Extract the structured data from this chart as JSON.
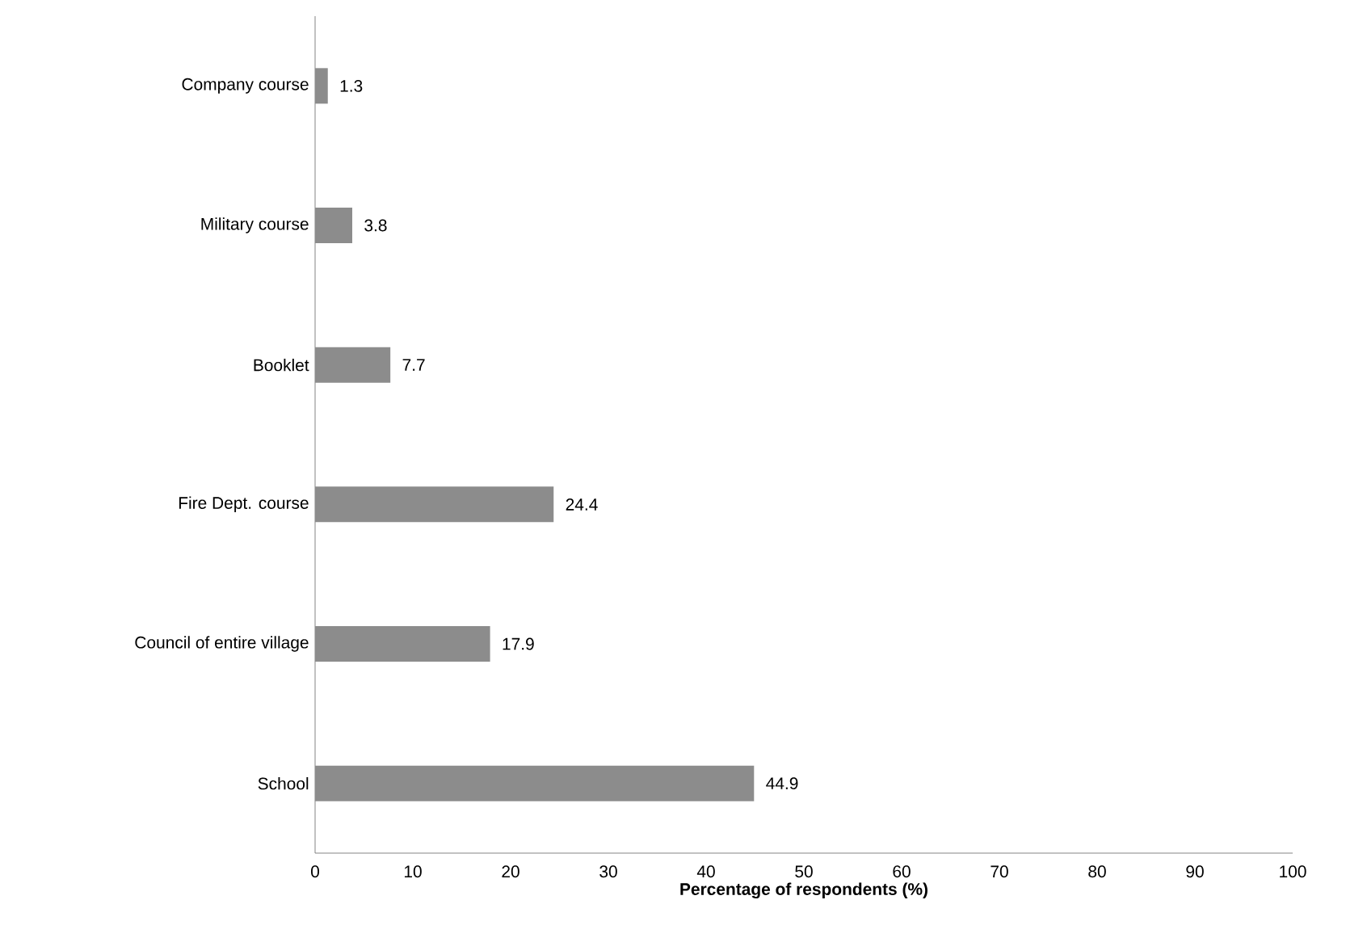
{
  "chart_data": {
    "type": "bar",
    "orientation": "horizontal",
    "xlabel": "Percentage of respondents (%)",
    "categories": [
      "Company course",
      "Military course",
      "Booklet",
      "Fire Dept. course",
      "Council of entire village",
      "School"
    ],
    "values": [
      1.3,
      3.8,
      7.7,
      24.4,
      17.9,
      44.9
    ],
    "color": "#8c8c8c",
    "data_labels": true,
    "xlim": [
      0,
      100
    ],
    "xticks": [
      0,
      10,
      20,
      30,
      40,
      50,
      60,
      70,
      80,
      90,
      100
    ]
  }
}
